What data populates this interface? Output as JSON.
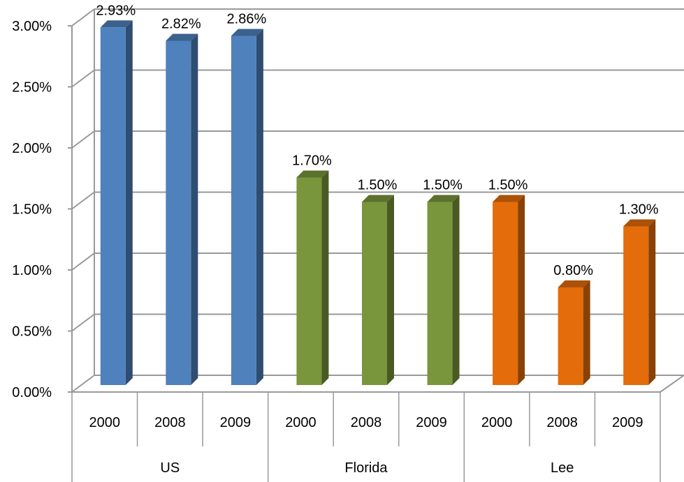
{
  "chart_data": {
    "type": "bar",
    "title": "",
    "xlabel": "",
    "ylabel": "",
    "ylim": [
      0,
      3
    ],
    "yticks": [
      "0.00%",
      "0.50%",
      "1.00%",
      "1.50%",
      "2.00%",
      "2.50%",
      "3.00%"
    ],
    "y_tick_values": [
      0,
      0.5,
      1,
      1.5,
      2,
      2.5,
      3
    ],
    "grid": true,
    "legend": "none",
    "groups": [
      {
        "name": "US",
        "color": "#4F81BD",
        "categories": [
          "2000",
          "2008",
          "2009"
        ],
        "values": [
          2.93,
          2.82,
          2.86
        ],
        "labels": [
          "2.93%",
          "2.82%",
          "2.86%"
        ]
      },
      {
        "name": "Florida",
        "color": "#7A963C",
        "categories": [
          "2000",
          "2008",
          "2009"
        ],
        "values": [
          1.7,
          1.5,
          1.5
        ],
        "labels": [
          "1.70%",
          "1.50%",
          "1.50%"
        ]
      },
      {
        "name": "Lee",
        "color": "#E46C0A",
        "categories": [
          "2000",
          "2008",
          "2009"
        ],
        "values": [
          1.5,
          0.8,
          1.3
        ],
        "labels": [
          "1.50%",
          "0.80%",
          "1.30%"
        ]
      }
    ]
  }
}
